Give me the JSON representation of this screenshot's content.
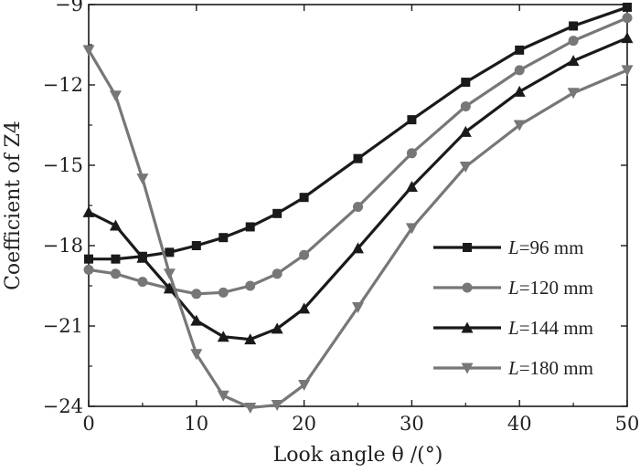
{
  "chart_data": {
    "type": "line",
    "xlabel": "Look angle  θ /(°)",
    "ylabel": "Coefficient of Z4",
    "xlim": [
      0,
      50
    ],
    "ylim": [
      -24,
      -9
    ],
    "xticks": [
      0,
      10,
      20,
      30,
      40,
      50
    ],
    "yticks": [
      -9,
      -12,
      -15,
      -18,
      -21,
      -24
    ],
    "xtick_labels": [
      "0",
      "10",
      "20",
      "30",
      "40",
      "50"
    ],
    "ytick_labels": [
      "−9",
      "−12",
      "−15",
      "−18",
      "−21",
      "−24"
    ],
    "grid": false,
    "legend_position": "right",
    "series": [
      {
        "name": "L=96 mm",
        "legend_var": "L",
        "legend_rest": "=96 mm",
        "color": "#1a1a1a",
        "marker": "square",
        "x": [
          0,
          2.5,
          5,
          7.5,
          10,
          12.5,
          15,
          17.5,
          20,
          25,
          30,
          35,
          40,
          45,
          50
        ],
        "y": [
          -18.5,
          -18.5,
          -18.4,
          -18.25,
          -18.0,
          -17.7,
          -17.3,
          -16.8,
          -16.2,
          -14.75,
          -13.3,
          -11.9,
          -10.7,
          -9.8,
          -9.1
        ]
      },
      {
        "name": "L=120 mm",
        "legend_var": "L",
        "legend_rest": "=120 mm",
        "color": "#777777",
        "marker": "circle",
        "x": [
          0,
          2.5,
          5,
          7.5,
          10,
          12.5,
          15,
          17.5,
          20,
          25,
          30,
          35,
          40,
          45,
          50
        ],
        "y": [
          -18.9,
          -19.05,
          -19.35,
          -19.6,
          -19.8,
          -19.75,
          -19.5,
          -19.05,
          -18.35,
          -16.55,
          -14.55,
          -12.8,
          -11.45,
          -10.35,
          -9.5
        ]
      },
      {
        "name": "L=144 mm",
        "legend_var": "L",
        "legend_rest": "=144 mm",
        "color": "#1a1a1a",
        "marker": "triangle-up",
        "x": [
          0,
          2.5,
          5,
          7.5,
          10,
          12.5,
          15,
          17.5,
          20,
          25,
          30,
          35,
          40,
          45,
          50
        ],
        "y": [
          -16.75,
          -17.25,
          -18.45,
          -19.6,
          -20.8,
          -21.4,
          -21.5,
          -21.1,
          -20.35,
          -18.1,
          -15.8,
          -13.75,
          -12.25,
          -11.1,
          -10.25
        ]
      },
      {
        "name": "L=180 mm",
        "legend_var": "L",
        "legend_rest": "=180 mm",
        "color": "#777777",
        "marker": "triangle-down",
        "x": [
          0,
          2.5,
          5,
          7.5,
          10,
          12.5,
          15,
          17.5,
          20,
          25,
          30,
          35,
          40,
          45,
          50
        ],
        "y": [
          -10.7,
          -12.4,
          -15.5,
          -19.05,
          -22.05,
          -23.6,
          -24.05,
          -23.95,
          -23.2,
          -20.3,
          -17.35,
          -15.05,
          -13.5,
          -12.3,
          -11.45
        ]
      }
    ]
  }
}
